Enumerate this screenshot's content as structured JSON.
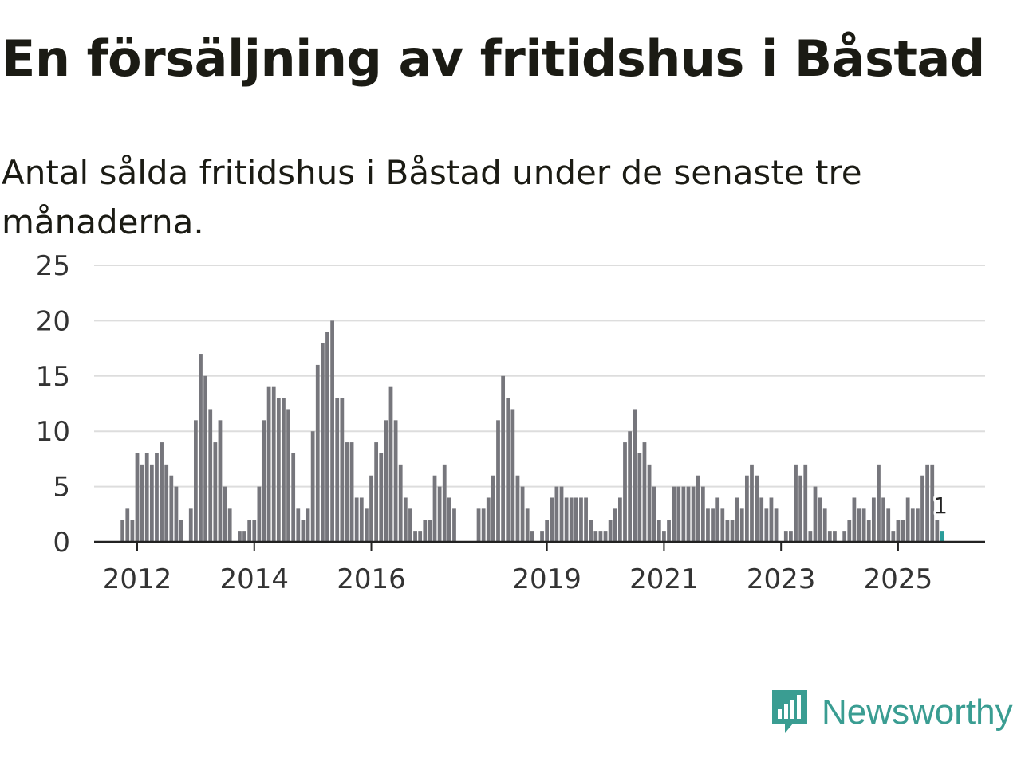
{
  "title": "En försäljning av fritidshus i Båstad",
  "subtitle": "Antal sålda fritidshus i Båstad under de senaste tre månaderna.",
  "brand": {
    "name": "Newsworthy",
    "color": "#3a9d92",
    "icon": "newsworthy-logo-icon"
  },
  "colors": {
    "bar": "#76767c",
    "highlight": "#2a9d9a",
    "grid": "#dddddd",
    "axis": "#222222"
  },
  "chart_data": {
    "type": "bar",
    "title": "En försäljning av fritidshus i Båstad",
    "subtitle": "Antal sålda fritidshus i Båstad under de senaste tre månaderna.",
    "xlabel": "",
    "ylabel": "",
    "ylim": [
      0,
      25
    ],
    "yticks": [
      0,
      5,
      10,
      15,
      20,
      25
    ],
    "grid": true,
    "x_start": 2011.75,
    "x_step": 0.0833333,
    "xtick_years": [
      2012,
      2014,
      2016,
      2019,
      2021,
      2023,
      2025
    ],
    "xtick_labels": [
      "2012",
      "2014",
      "2016",
      "2019",
      "2021",
      "2023",
      "2025"
    ],
    "highlight_label": "1",
    "values": [
      2,
      3,
      2,
      8,
      7,
      8,
      7,
      8,
      9,
      7,
      6,
      5,
      2,
      0,
      3,
      11,
      17,
      15,
      12,
      9,
      11,
      5,
      3,
      0,
      1,
      1,
      2,
      2,
      5,
      11,
      14,
      14,
      13,
      13,
      12,
      8,
      3,
      2,
      3,
      10,
      16,
      18,
      19,
      20,
      13,
      13,
      9,
      9,
      4,
      4,
      3,
      6,
      9,
      8,
      11,
      14,
      11,
      7,
      4,
      3,
      1,
      1,
      2,
      2,
      6,
      5,
      7,
      4,
      3,
      0,
      0,
      0,
      0,
      3,
      3,
      4,
      6,
      11,
      15,
      13,
      12,
      6,
      5,
      3,
      1,
      0,
      1,
      2,
      4,
      5,
      5,
      4,
      4,
      4,
      4,
      4,
      2,
      1,
      1,
      1,
      2,
      3,
      4,
      9,
      10,
      12,
      8,
      9,
      7,
      5,
      2,
      1,
      2,
      5,
      5,
      5,
      5,
      5,
      6,
      5,
      3,
      3,
      4,
      3,
      2,
      2,
      4,
      3,
      6,
      7,
      6,
      4,
      3,
      4,
      3,
      0,
      1,
      1,
      7,
      6,
      7,
      1,
      5,
      4,
      3,
      1,
      1,
      0,
      1,
      2,
      4,
      3,
      3,
      2,
      4,
      7,
      4,
      3,
      1,
      2,
      2,
      4,
      3,
      3,
      6,
      7,
      7,
      2,
      1
    ]
  }
}
